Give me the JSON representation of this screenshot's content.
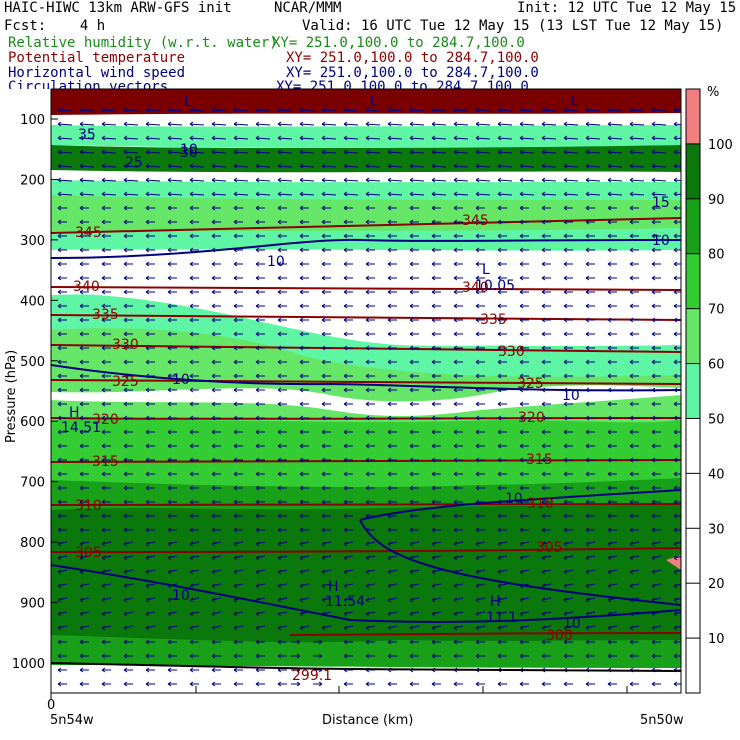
{
  "header": {
    "line1_left": "HAIC-HIWC 13km ARW-GFS init",
    "line1_mid": "NCAR/MMM",
    "line1_right": "Init: 12 UTC Tue 12 May 15",
    "line2_left": "Fcst:    4 h",
    "line2_right": "Valid: 16 UTC Tue 12 May 15 (13 LST Tue 12 May 15)",
    "fields": [
      {
        "label": "Relative humidity (w.r.t. water)",
        "xy": "XY= 251.0,100.0 to 284.7,100.0",
        "color": "#1a8a1a"
      },
      {
        "label": "Potential temperature",
        "xy": "XY= 251.0,100.0 to 284.7,100.0",
        "color": "#8b0000"
      },
      {
        "label": "Horizontal wind speed",
        "xy": "XY= 251.0,100.0 to 284.7,100.0",
        "color": "#00007f"
      },
      {
        "label": "Circulation vectors",
        "xy": "XY= 251.0,100.0 to 284.7,100.0",
        "color": "#00007f"
      }
    ]
  },
  "chart_data": {
    "type": "heatmap",
    "ylabel": "Pressure (hPa)",
    "xlabel": "Distance (km)",
    "x_start_label": "0",
    "x_left_label": "5n54w",
    "x_right_label": "5n50w",
    "y_ticks": [
      100,
      200,
      300,
      400,
      500,
      600,
      700,
      800,
      900,
      1000
    ],
    "colorbar": {
      "unit": "%",
      "ticks": [
        10,
        20,
        30,
        40,
        50,
        60,
        70,
        80,
        90,
        100
      ],
      "bands": [
        {
          "from": 0,
          "to": 50,
          "color": "#ffffff"
        },
        {
          "from": 50,
          "to": 60,
          "color": "#5ef5a4"
        },
        {
          "from": 60,
          "to": 70,
          "color": "#66e666"
        },
        {
          "from": 70,
          "to": 80,
          "color": "#33cc33"
        },
        {
          "from": 80,
          "to": 90,
          "color": "#19a019"
        },
        {
          "from": 90,
          "to": 100,
          "color": "#0a780a"
        },
        {
          "from": 100,
          "to": 110,
          "color": "#f08080"
        }
      ]
    },
    "theta_labels": [
      "345",
      "345",
      "340",
      "340",
      "335",
      "335",
      "330",
      "330",
      "325",
      "325",
      "320",
      "320",
      "315",
      "315",
      "310",
      "310",
      "305",
      "305",
      "300",
      "299.1"
    ],
    "wind_labels": [
      "15",
      "10",
      "10",
      "10",
      "10",
      "10",
      "10",
      "10",
      "10",
      "25",
      "30",
      "35",
      "10.05"
    ],
    "extrema_labels": [
      "H",
      "14.51",
      "H",
      "11.54",
      "H",
      "11.1",
      "L",
      "L",
      "L",
      "L"
    ]
  }
}
